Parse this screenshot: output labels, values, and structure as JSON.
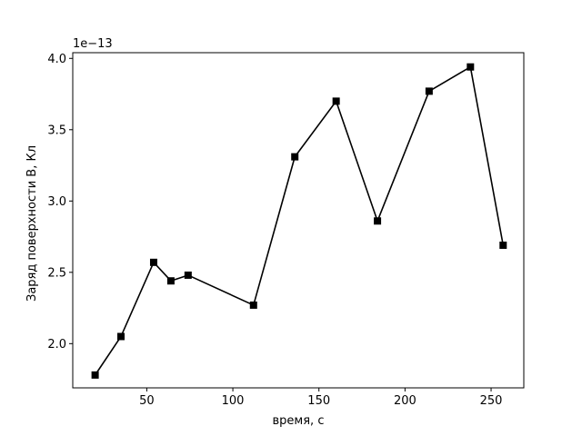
{
  "chart_data": {
    "type": "line",
    "x": [
      20,
      35,
      54,
      64,
      74,
      112,
      136,
      160,
      184,
      214,
      238,
      257
    ],
    "series": [
      {
        "values": [
          1.78,
          2.05,
          2.57,
          2.44,
          2.48,
          2.27,
          3.31,
          3.7,
          2.86,
          3.77,
          3.94,
          2.69
        ],
        "color": "#000000",
        "marker": "square"
      }
    ],
    "xlabel": "время, с",
    "ylabel": "Заряд поверхности B, Кл",
    "y_offset_label": "1e−13",
    "xlim": [
      7,
      269
    ],
    "ylim": [
      1.69,
      4.04
    ],
    "xticks": [
      50,
      100,
      150,
      200,
      250
    ],
    "xtick_labels": [
      "50",
      "100",
      "150",
      "200",
      "250"
    ],
    "yticks": [
      2.0,
      2.5,
      3.0,
      3.5,
      4.0
    ],
    "ytick_labels": [
      "2.0",
      "2.5",
      "3.0",
      "3.5",
      "4.0"
    ],
    "grid": false,
    "legend": false
  }
}
